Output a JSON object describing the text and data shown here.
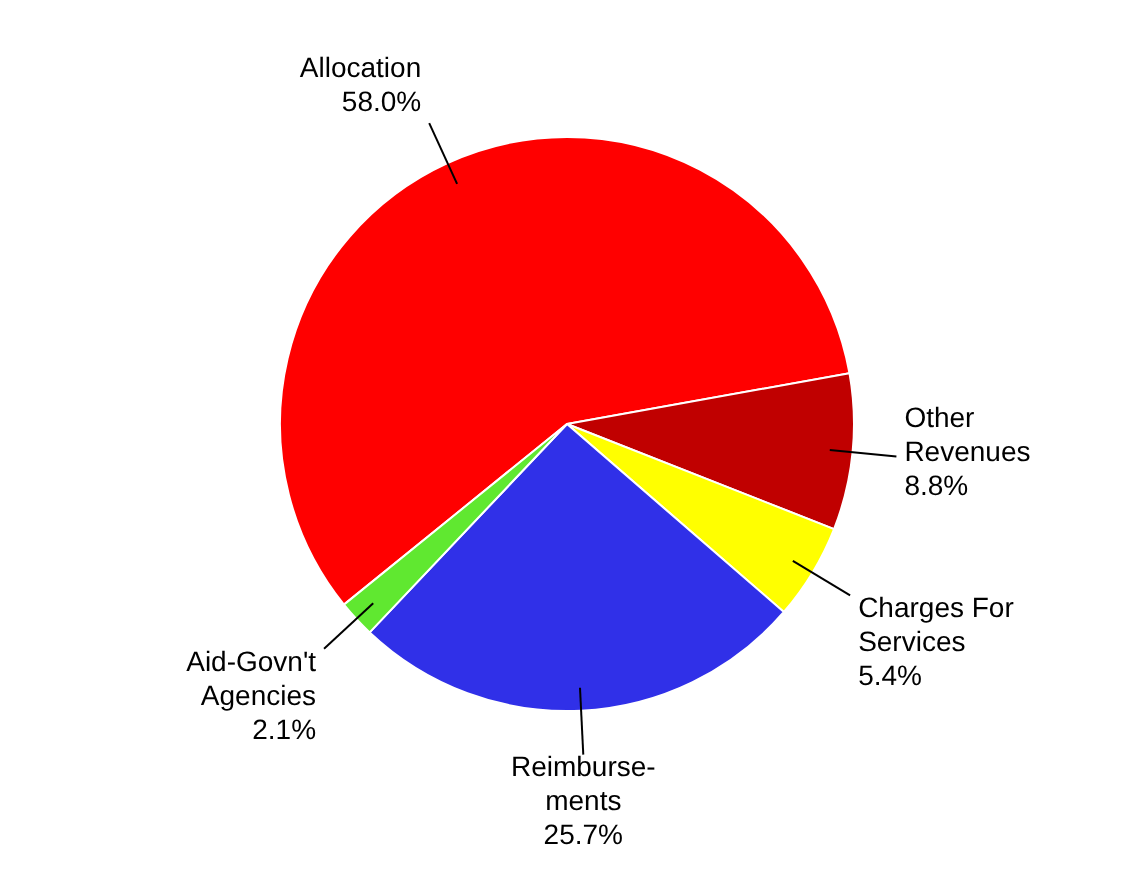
{
  "chart_data": {
    "type": "pie",
    "categories": [
      "Allocation",
      "Other\nRevenues",
      "Charges For\nServices",
      "Reimburse-\nments",
      "Aid-Govn't\nAgencies"
    ],
    "values": [
      58.0,
      8.8,
      5.4,
      25.7,
      2.1
    ],
    "value_labels": [
      "58.0%",
      "8.8%",
      "5.4%",
      "25.7%",
      "2.1%"
    ],
    "colors": [
      "#ff0000",
      "#c00000",
      "#ffff00",
      "#3030e8",
      "#60e830"
    ],
    "legend": false
  }
}
